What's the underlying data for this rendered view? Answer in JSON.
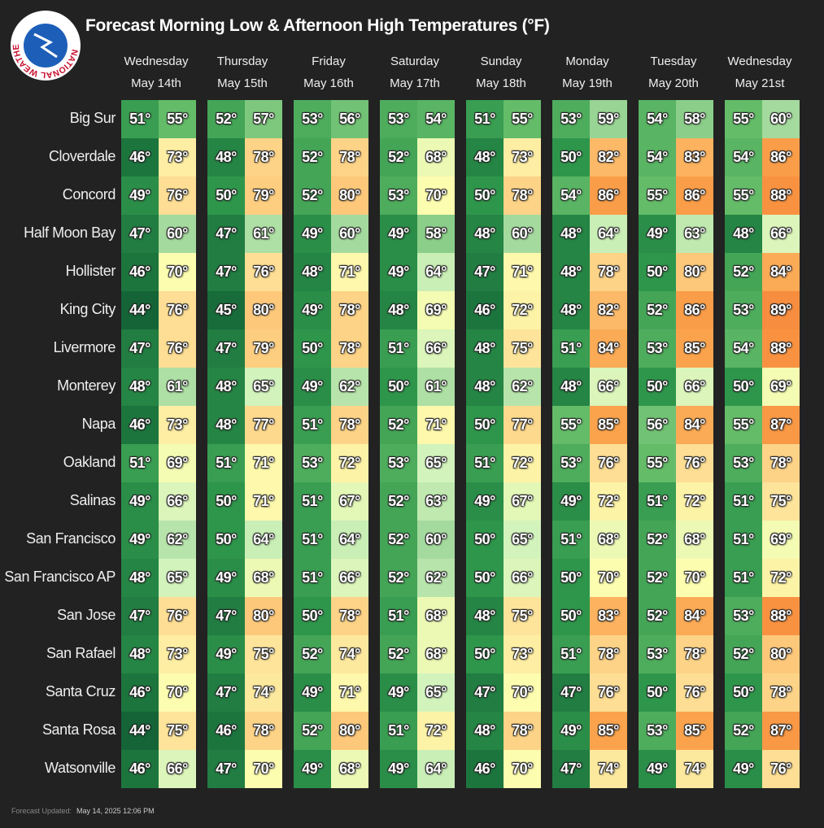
{
  "logo": {
    "text": "NATIONAL WEATHER SERVICE"
  },
  "header": {
    "title": "Forecast Morning Low & Afternoon High Temperatures (°F)"
  },
  "days": [
    {
      "weekday": "Wednesday",
      "date": "May 14th"
    },
    {
      "weekday": "Thursday",
      "date": "May 15th"
    },
    {
      "weekday": "Friday",
      "date": "May 16th"
    },
    {
      "weekday": "Saturday",
      "date": "May 17th"
    },
    {
      "weekday": "Sunday",
      "date": "May 18th"
    },
    {
      "weekday": "Monday",
      "date": "May 19th"
    },
    {
      "weekday": "Tuesday",
      "date": "May 20th"
    },
    {
      "weekday": "Wednesday",
      "date": "May 21st"
    }
  ],
  "rows": [
    {
      "name": "Big Sur",
      "temps": [
        [
          "51°",
          "55°"
        ],
        [
          "52°",
          "57°"
        ],
        [
          "53°",
          "56°"
        ],
        [
          "53°",
          "54°"
        ],
        [
          "51°",
          "55°"
        ],
        [
          "53°",
          "59°"
        ],
        [
          "54°",
          "58°"
        ],
        [
          "55°",
          "60°"
        ]
      ]
    },
    {
      "name": "Cloverdale",
      "temps": [
        [
          "46°",
          "73°"
        ],
        [
          "48°",
          "78°"
        ],
        [
          "52°",
          "78°"
        ],
        [
          "52°",
          "68°"
        ],
        [
          "48°",
          "73°"
        ],
        [
          "50°",
          "82°"
        ],
        [
          "54°",
          "83°"
        ],
        [
          "54°",
          "86°"
        ]
      ]
    },
    {
      "name": "Concord",
      "temps": [
        [
          "49°",
          "76°"
        ],
        [
          "50°",
          "79°"
        ],
        [
          "52°",
          "80°"
        ],
        [
          "53°",
          "70°"
        ],
        [
          "50°",
          "78°"
        ],
        [
          "54°",
          "86°"
        ],
        [
          "55°",
          "86°"
        ],
        [
          "55°",
          "88°"
        ]
      ]
    },
    {
      "name": "Half Moon Bay",
      "temps": [
        [
          "47°",
          "60°"
        ],
        [
          "47°",
          "61°"
        ],
        [
          "49°",
          "60°"
        ],
        [
          "49°",
          "58°"
        ],
        [
          "48°",
          "60°"
        ],
        [
          "48°",
          "64°"
        ],
        [
          "49°",
          "63°"
        ],
        [
          "48°",
          "66°"
        ]
      ]
    },
    {
      "name": "Hollister",
      "temps": [
        [
          "46°",
          "70°"
        ],
        [
          "47°",
          "76°"
        ],
        [
          "48°",
          "71°"
        ],
        [
          "49°",
          "64°"
        ],
        [
          "47°",
          "71°"
        ],
        [
          "48°",
          "78°"
        ],
        [
          "50°",
          "80°"
        ],
        [
          "52°",
          "84°"
        ]
      ]
    },
    {
      "name": "King City",
      "temps": [
        [
          "44°",
          "76°"
        ],
        [
          "45°",
          "80°"
        ],
        [
          "49°",
          "78°"
        ],
        [
          "48°",
          "69°"
        ],
        [
          "46°",
          "72°"
        ],
        [
          "48°",
          "82°"
        ],
        [
          "52°",
          "86°"
        ],
        [
          "53°",
          "89°"
        ]
      ]
    },
    {
      "name": "Livermore",
      "temps": [
        [
          "47°",
          "76°"
        ],
        [
          "47°",
          "79°"
        ],
        [
          "50°",
          "78°"
        ],
        [
          "51°",
          "66°"
        ],
        [
          "48°",
          "75°"
        ],
        [
          "51°",
          "84°"
        ],
        [
          "53°",
          "85°"
        ],
        [
          "54°",
          "88°"
        ]
      ]
    },
    {
      "name": "Monterey",
      "temps": [
        [
          "48°",
          "61°"
        ],
        [
          "48°",
          "65°"
        ],
        [
          "49°",
          "62°"
        ],
        [
          "50°",
          "61°"
        ],
        [
          "48°",
          "62°"
        ],
        [
          "48°",
          "66°"
        ],
        [
          "50°",
          "66°"
        ],
        [
          "50°",
          "69°"
        ]
      ]
    },
    {
      "name": "Napa",
      "temps": [
        [
          "46°",
          "73°"
        ],
        [
          "48°",
          "77°"
        ],
        [
          "51°",
          "78°"
        ],
        [
          "52°",
          "71°"
        ],
        [
          "50°",
          "77°"
        ],
        [
          "55°",
          "85°"
        ],
        [
          "56°",
          "84°"
        ],
        [
          "55°",
          "87°"
        ]
      ]
    },
    {
      "name": "Oakland",
      "temps": [
        [
          "51°",
          "69°"
        ],
        [
          "51°",
          "71°"
        ],
        [
          "53°",
          "72°"
        ],
        [
          "53°",
          "65°"
        ],
        [
          "51°",
          "72°"
        ],
        [
          "53°",
          "76°"
        ],
        [
          "55°",
          "76°"
        ],
        [
          "53°",
          "78°"
        ]
      ]
    },
    {
      "name": "Salinas",
      "temps": [
        [
          "49°",
          "66°"
        ],
        [
          "50°",
          "71°"
        ],
        [
          "51°",
          "67°"
        ],
        [
          "52°",
          "63°"
        ],
        [
          "49°",
          "67°"
        ],
        [
          "49°",
          "72°"
        ],
        [
          "51°",
          "72°"
        ],
        [
          "51°",
          "75°"
        ]
      ]
    },
    {
      "name": "San Francisco",
      "temps": [
        [
          "49°",
          "62°"
        ],
        [
          "50°",
          "64°"
        ],
        [
          "51°",
          "64°"
        ],
        [
          "52°",
          "60°"
        ],
        [
          "50°",
          "65°"
        ],
        [
          "51°",
          "68°"
        ],
        [
          "52°",
          "68°"
        ],
        [
          "51°",
          "69°"
        ]
      ]
    },
    {
      "name": "San Francisco AP",
      "temps": [
        [
          "48°",
          "65°"
        ],
        [
          "49°",
          "68°"
        ],
        [
          "51°",
          "66°"
        ],
        [
          "52°",
          "62°"
        ],
        [
          "50°",
          "66°"
        ],
        [
          "50°",
          "70°"
        ],
        [
          "52°",
          "70°"
        ],
        [
          "51°",
          "72°"
        ]
      ]
    },
    {
      "name": "San Jose",
      "temps": [
        [
          "47°",
          "76°"
        ],
        [
          "47°",
          "80°"
        ],
        [
          "50°",
          "78°"
        ],
        [
          "51°",
          "68°"
        ],
        [
          "48°",
          "75°"
        ],
        [
          "50°",
          "83°"
        ],
        [
          "52°",
          "84°"
        ],
        [
          "53°",
          "88°"
        ]
      ]
    },
    {
      "name": "San Rafael",
      "temps": [
        [
          "48°",
          "73°"
        ],
        [
          "49°",
          "75°"
        ],
        [
          "52°",
          "74°"
        ],
        [
          "52°",
          "68°"
        ],
        [
          "50°",
          "73°"
        ],
        [
          "51°",
          "78°"
        ],
        [
          "53°",
          "78°"
        ],
        [
          "52°",
          "80°"
        ]
      ]
    },
    {
      "name": "Santa Cruz",
      "temps": [
        [
          "46°",
          "70°"
        ],
        [
          "47°",
          "74°"
        ],
        [
          "49°",
          "71°"
        ],
        [
          "49°",
          "65°"
        ],
        [
          "47°",
          "70°"
        ],
        [
          "47°",
          "76°"
        ],
        [
          "50°",
          "76°"
        ],
        [
          "50°",
          "78°"
        ]
      ]
    },
    {
      "name": "Santa Rosa",
      "temps": [
        [
          "44°",
          "75°"
        ],
        [
          "46°",
          "78°"
        ],
        [
          "52°",
          "80°"
        ],
        [
          "51°",
          "72°"
        ],
        [
          "48°",
          "78°"
        ],
        [
          "49°",
          "85°"
        ],
        [
          "53°",
          "85°"
        ],
        [
          "52°",
          "87°"
        ]
      ]
    },
    {
      "name": "Watsonville",
      "temps": [
        [
          "46°",
          "66°"
        ],
        [
          "47°",
          "70°"
        ],
        [
          "49°",
          "68°"
        ],
        [
          "49°",
          "64°"
        ],
        [
          "46°",
          "70°"
        ],
        [
          "47°",
          "74°"
        ],
        [
          "49°",
          "74°"
        ],
        [
          "49°",
          "76°"
        ]
      ]
    }
  ],
  "footer": {
    "label": "Forecast Updated:",
    "value": "May 14, 2025 12:06 PM"
  }
}
